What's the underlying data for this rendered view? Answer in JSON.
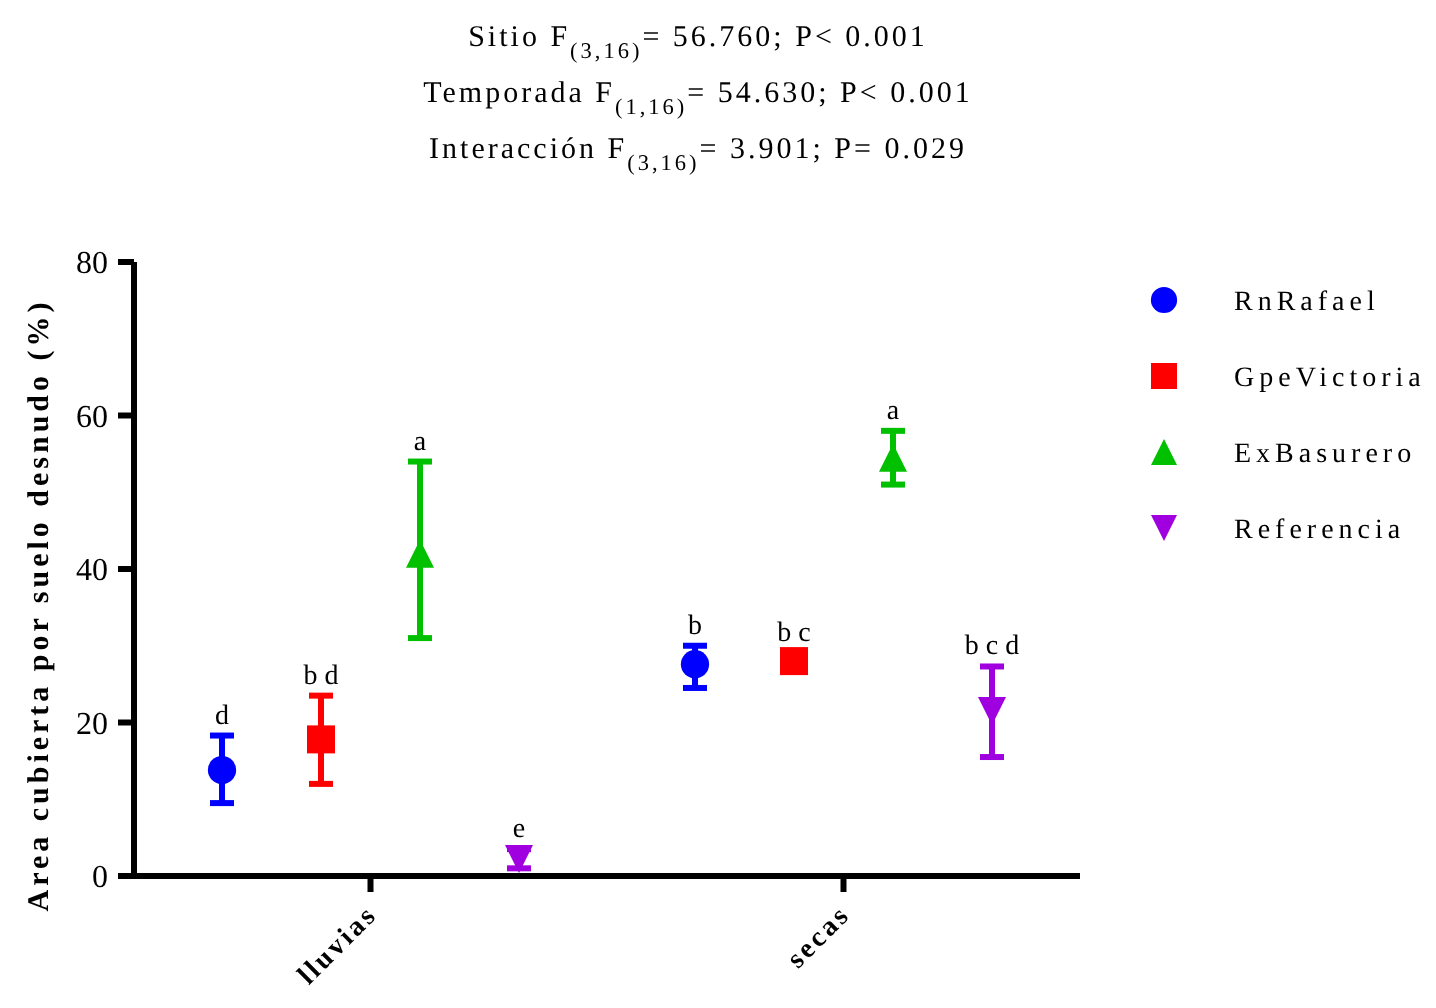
{
  "chart_data": {
    "type": "scatter",
    "title": "Sitio F$_{(3,16)}$= 56.760; P< 0.001\nTemporada F$_{(1,16)}$= 54.630; P< 0.001\nInteracción F$_{(3,16)}$= 3.901; P= 0.029",
    "ylabel": "Area cubierta por suelo desnudo (%)",
    "categories": [
      "lluvias",
      "secas"
    ],
    "ylim": [
      0,
      80
    ],
    "yticks": [
      0,
      20,
      40,
      60,
      80
    ],
    "legend": "right",
    "grid": false,
    "series": [
      {
        "name": "RnRafael",
        "color": "#0000ff",
        "marker": "circle",
        "values": [
          13.8,
          27.6
        ],
        "errors": [
          [
            9.5,
            18.3
          ],
          [
            24.5,
            30
          ]
        ]
      },
      {
        "name": "GpeVictoria",
        "color": "#ff0000",
        "marker": "square",
        "values": [
          17.8,
          28
        ],
        "errors": [
          [
            12,
            23.5
          ],
          null
        ]
      },
      {
        "name": "ExBasurero",
        "color": "#00c000",
        "marker": "triangle",
        "values": [
          42,
          54.5
        ],
        "errors": [
          [
            31,
            54
          ],
          [
            51,
            58
          ]
        ]
      },
      {
        "name": "Referencia",
        "color": "#a000e0",
        "marker": "triangle-down",
        "values": [
          2.2,
          21.5
        ],
        "errors": [
          [
            1,
            3.5
          ],
          [
            15.5,
            27.3
          ]
        ]
      }
    ],
    "annotations": [
      "d",
      "b d",
      "a",
      "e",
      "b",
      "b c",
      "a",
      "b c d"
    ]
  }
}
